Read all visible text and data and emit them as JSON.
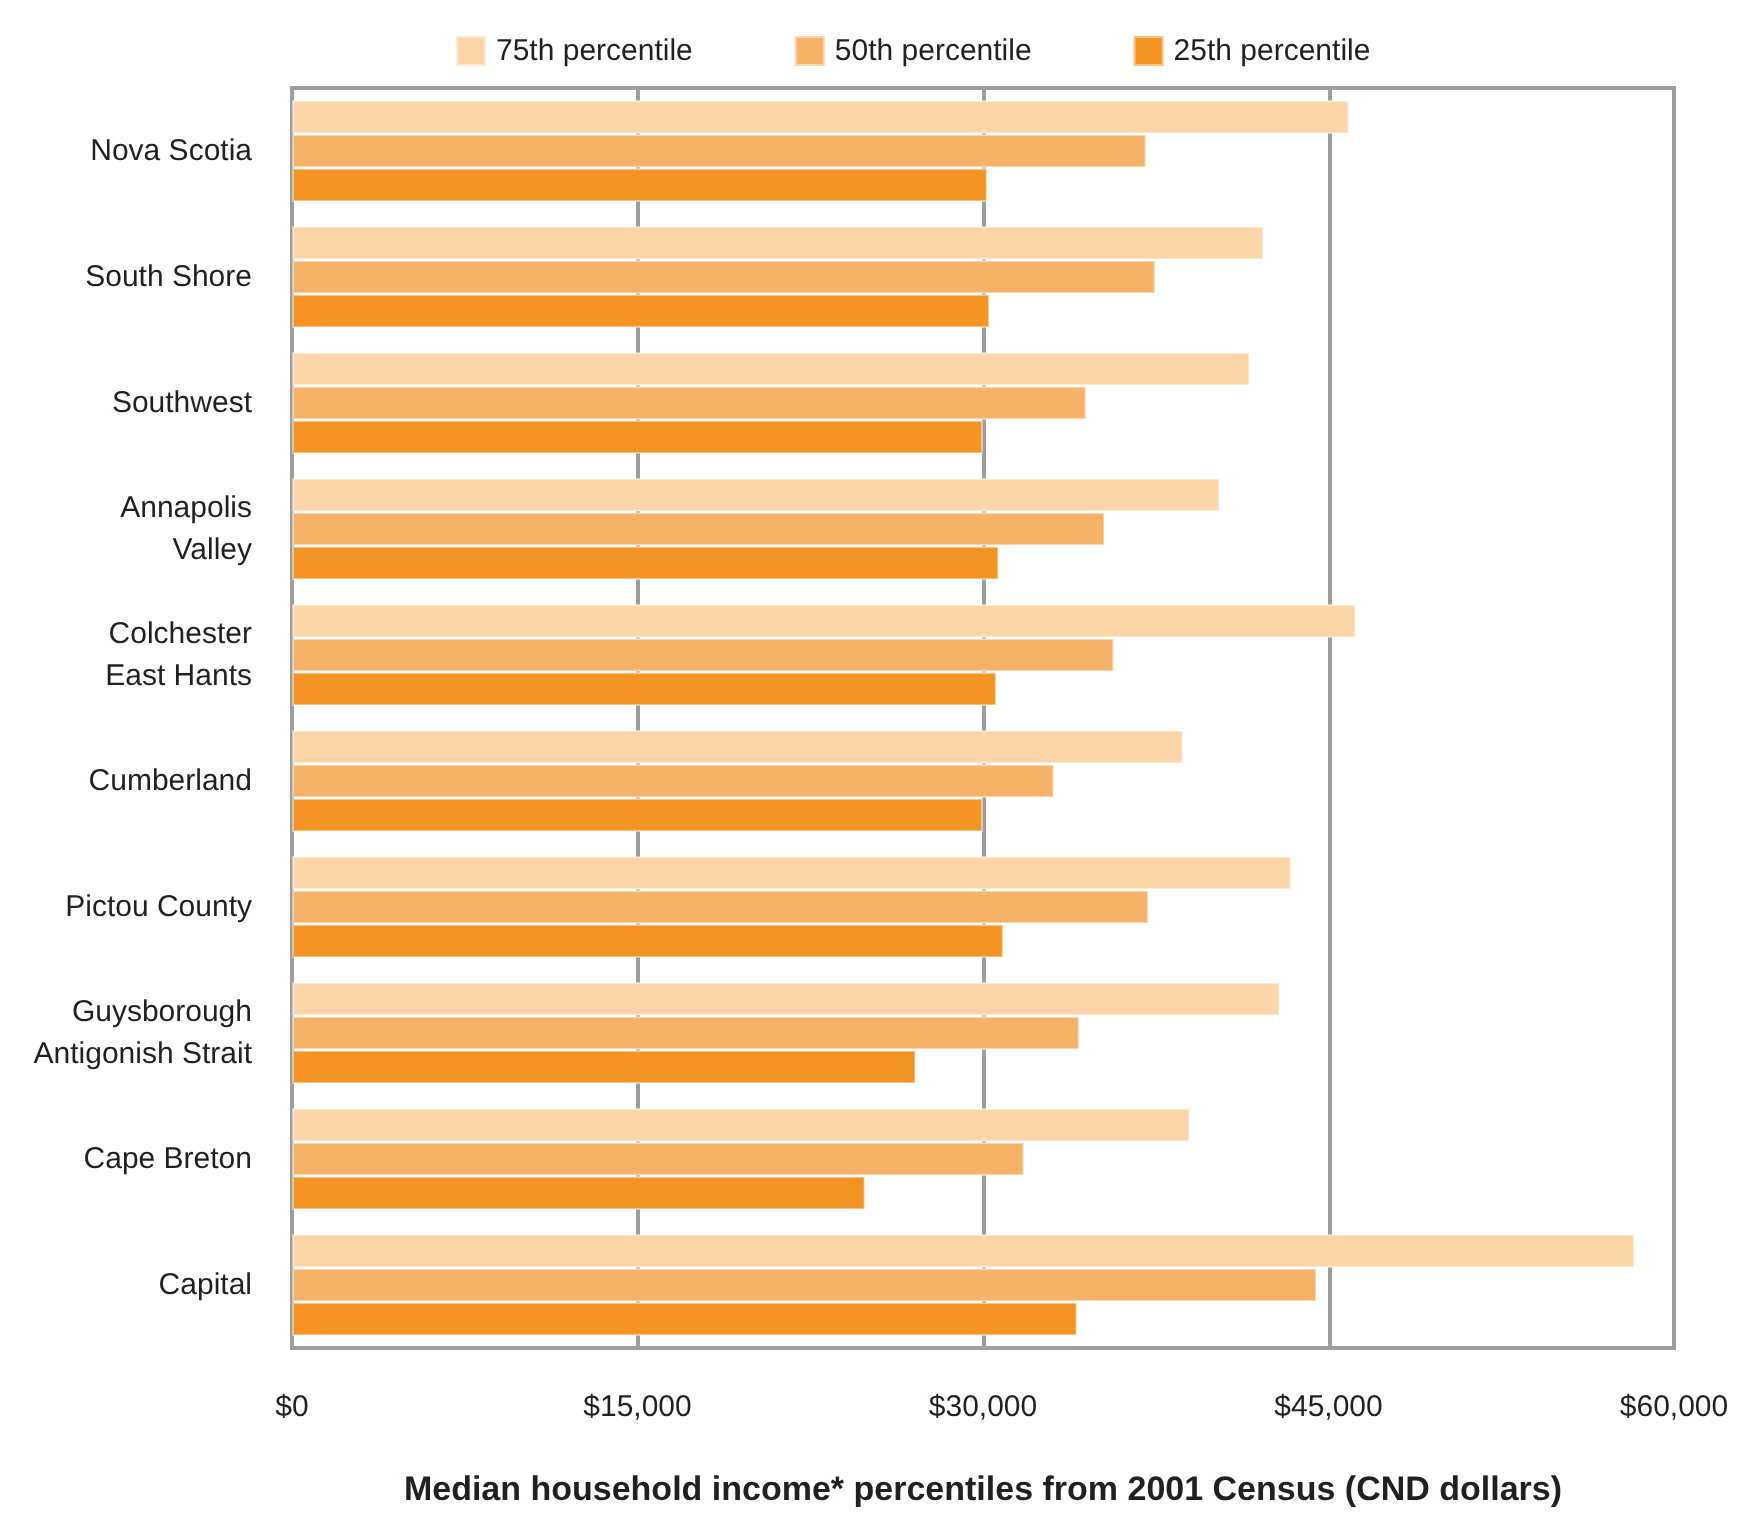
{
  "chart_data": {
    "type": "bar",
    "orientation": "horizontal",
    "categories": [
      "Nova Scotia",
      "South Shore",
      "Southwest",
      "Annapolis Valley",
      "Colchester East Hants",
      "Cumberland",
      "Pictou County",
      "Guysborough Antigonish Strait",
      "Cape Breton",
      "Capital"
    ],
    "series": [
      {
        "name": "75th percentile",
        "color": "#fdd5a8",
        "values": [
          45900,
          42200,
          41600,
          40300,
          46200,
          38700,
          43400,
          42900,
          39000,
          58300
        ]
      },
      {
        "name": "50th percentile",
        "color": "#f7b269",
        "values": [
          37100,
          37500,
          34500,
          35300,
          35700,
          33100,
          37200,
          34200,
          31800,
          44500
        ]
      },
      {
        "name": "25th percentile",
        "color": "#f39322",
        "values": [
          30200,
          30300,
          30000,
          30700,
          30600,
          30000,
          30900,
          27100,
          24900,
          34100
        ]
      }
    ],
    "xlim": [
      0,
      60000
    ],
    "xticks": [
      {
        "value": 0,
        "label": "$0"
      },
      {
        "value": 15000,
        "label": "$15,000"
      },
      {
        "value": 30000,
        "label": "$30,000"
      },
      {
        "value": 45000,
        "label": "$45,000"
      },
      {
        "value": 60000,
        "label": "$60,000"
      }
    ],
    "xlabel": "Median household income* percentiles from 2001 Census (CND dollars)",
    "grid": "x",
    "legend": "top"
  }
}
